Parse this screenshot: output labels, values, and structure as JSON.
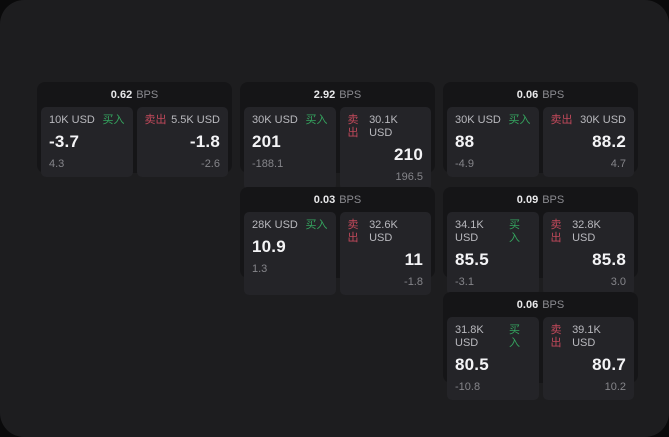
{
  "labels": {
    "bps": "BPS",
    "buy": "买入",
    "sell": "卖出"
  },
  "colors": {
    "buy_green": "#35a55f",
    "sell_red": "#c2495b",
    "screen_bg": "#1d1d1f",
    "card_bg": "#151517",
    "panel_bg": "#242428"
  },
  "cards": [
    {
      "bps": "0.62",
      "buy": {
        "size": "10K USD",
        "price": "-3.7",
        "delta": "4.3"
      },
      "sell": {
        "size": "5.5K USD",
        "price": "-1.8",
        "delta": "-2.6"
      }
    },
    {
      "bps": "2.92",
      "buy": {
        "size": "30K USD",
        "price": "201",
        "delta": "-188.1"
      },
      "sell": {
        "size": "30.1K USD",
        "price": "210",
        "delta": "196.5"
      }
    },
    {
      "bps": "0.06",
      "buy": {
        "size": "30K USD",
        "price": "88",
        "delta": "-4.9"
      },
      "sell": {
        "size": "30K USD",
        "price": "88.2",
        "delta": "4.7"
      }
    },
    {
      "bps": "0.03",
      "buy": {
        "size": "28K USD",
        "price": "10.9",
        "delta": "1.3"
      },
      "sell": {
        "size": "32.6K USD",
        "price": "11",
        "delta": "-1.8"
      }
    },
    {
      "bps": "0.09",
      "buy": {
        "size": "34.1K USD",
        "price": "85.5",
        "delta": "-3.1"
      },
      "sell": {
        "size": "32.8K USD",
        "price": "85.8",
        "delta": "3.0"
      }
    },
    {
      "bps": "0.06",
      "buy": {
        "size": "31.8K USD",
        "price": "80.5",
        "delta": "-10.8"
      },
      "sell": {
        "size": "39.1K USD",
        "price": "80.7",
        "delta": "10.2"
      }
    }
  ]
}
